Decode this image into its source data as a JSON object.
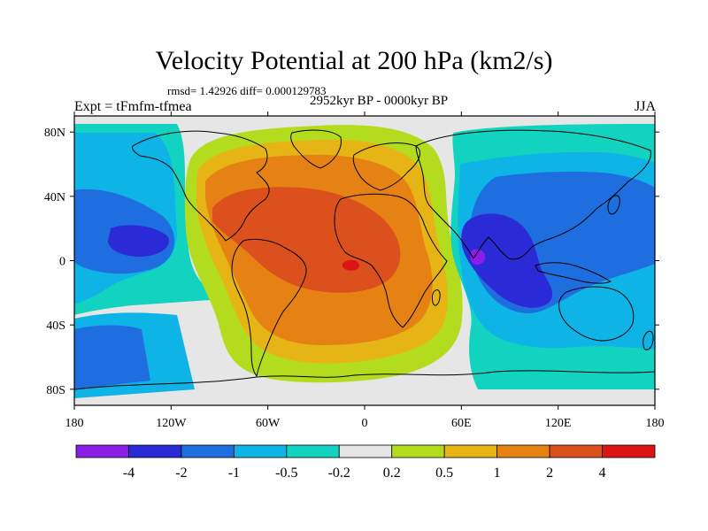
{
  "header": {
    "title": "Velocity Potential at 200 hPa (km2/s)",
    "stats": "rmsd= 1.42926 diff= 0.000129783",
    "period": "2952kyr BP - 0000kyr BP",
    "experiment": "Expt = tFmfm-tfmea",
    "season": "JJA"
  },
  "map": {
    "lon_range": [
      -180,
      180
    ],
    "lat_range": [
      -90,
      90
    ],
    "lat_ticks": [
      {
        "value": 80,
        "label": "80N"
      },
      {
        "value": 40,
        "label": "40N"
      },
      {
        "value": 0,
        "label": "0"
      },
      {
        "value": -40,
        "label": "40S"
      },
      {
        "value": -80,
        "label": "80S"
      }
    ],
    "lon_ticks": [
      {
        "value": -180,
        "label": "180"
      },
      {
        "value": -120,
        "label": "120W"
      },
      {
        "value": -60,
        "label": "60W"
      },
      {
        "value": 0,
        "label": "0"
      },
      {
        "value": 60,
        "label": "60E"
      },
      {
        "value": 120,
        "label": "120E"
      },
      {
        "value": 180,
        "label": "180"
      }
    ],
    "colors": {
      "background": "#e6e6e6",
      "coastline": "#000000"
    }
  },
  "colorbar": {
    "boundaries": [
      "-4",
      "-2",
      "-1",
      "-0.5",
      "-0.2",
      "0.2",
      "0.5",
      "1",
      "2",
      "4"
    ],
    "colors": [
      "#8a1ee6",
      "#2a2ad6",
      "#1e6ee0",
      "#0fb4e6",
      "#12d2c0",
      "#e6e6e6",
      "#b4dc1e",
      "#e6b414",
      "#e68214",
      "#dc501e",
      "#dc1414"
    ]
  }
}
